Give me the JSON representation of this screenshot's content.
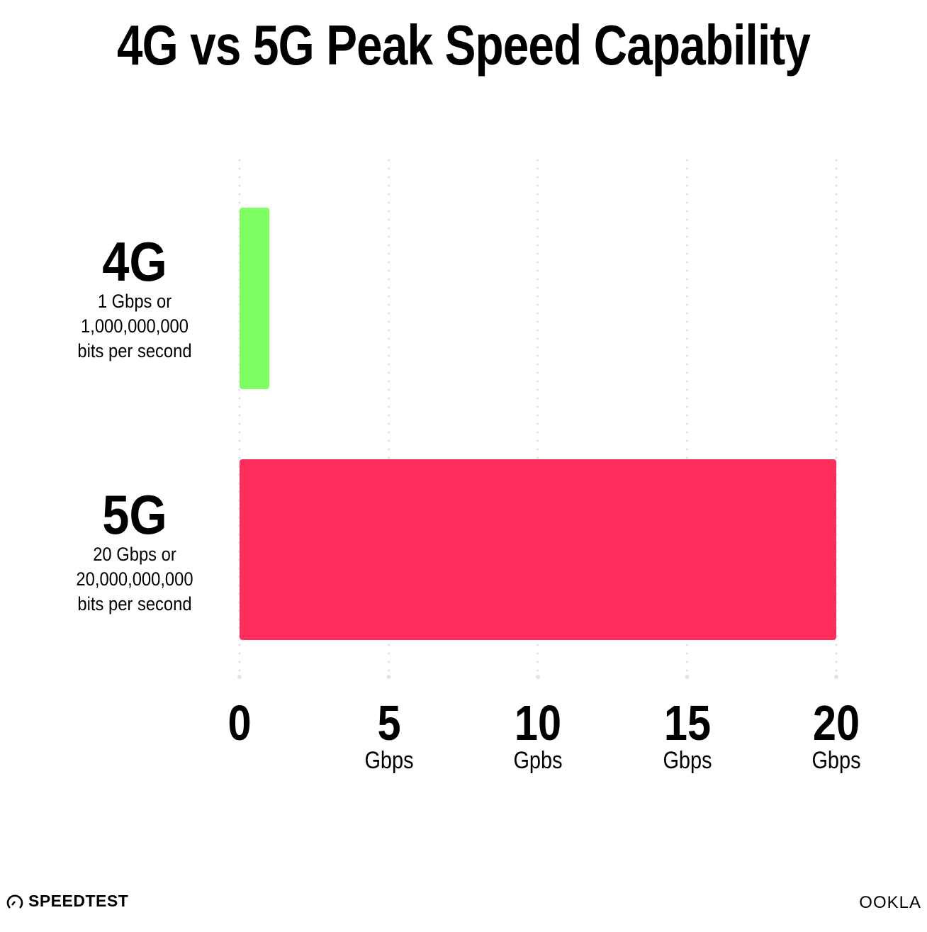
{
  "chart_data": {
    "type": "bar",
    "orientation": "horizontal",
    "title": "4G vs 5G Peak Speed Capability",
    "categories": [
      "4G",
      "5G"
    ],
    "category_sublabels": [
      [
        "1 Gbps or",
        "1,000,000,000",
        "bits per second"
      ],
      [
        "20 Gbps or",
        "20,000,000,000",
        "bits per second"
      ]
    ],
    "values": [
      1,
      20
    ],
    "colors": [
      "#80ff64",
      "#ff2d5b"
    ],
    "xlim": [
      0,
      20
    ],
    "xticks": [
      {
        "value": 0,
        "label": "0",
        "unit": ""
      },
      {
        "value": 5,
        "label": "5",
        "unit": "Gbps"
      },
      {
        "value": 10,
        "label": "10",
        "unit": "Gpbs"
      },
      {
        "value": 15,
        "label": "15",
        "unit": "Gbps"
      },
      {
        "value": 20,
        "label": "20",
        "unit": "Gbps"
      }
    ],
    "grid": "vertical dotted",
    "gridColor": "#e2e2ee"
  },
  "branding": {
    "left": "SPEEDTEST",
    "right": "OOKLA"
  }
}
